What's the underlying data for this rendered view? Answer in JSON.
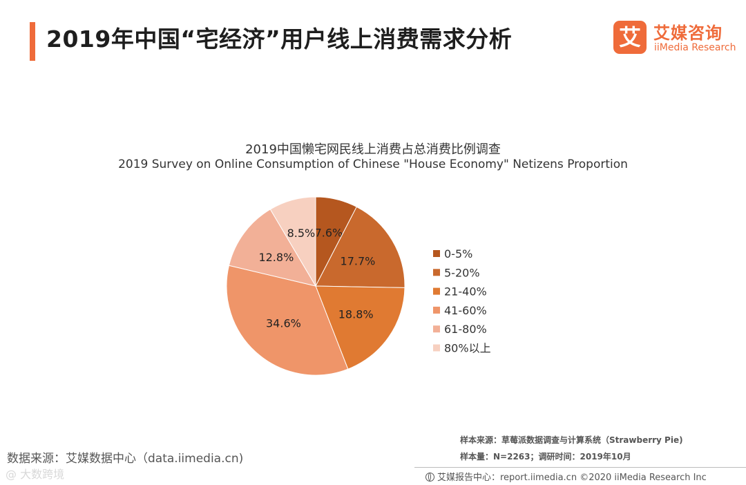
{
  "header": {
    "title": "2019年中国“宅经济”用户线上消费需求分析",
    "accent_color": "#ef6b3a"
  },
  "logo": {
    "mark": "艾",
    "name_cn": "艾媒咨询",
    "name_en": "iiMedia Research"
  },
  "chart_data": {
    "type": "pie",
    "title": "2019中国懒宅网民线上消费占总消费比例调查",
    "subtitle": "2019 Survey on Online Consumption of Chinese \"House Economy\" Netizens Proportion",
    "categories": [
      "0-5%",
      "5-20%",
      "21-40%",
      "41-60%",
      "61-80%",
      "80%以上"
    ],
    "values": [
      7.6,
      17.7,
      18.8,
      34.6,
      12.8,
      8.5
    ],
    "value_labels": [
      "7.6%",
      "17.7%",
      "18.8%",
      "34.6%",
      "12.8%",
      "8.5%"
    ],
    "colors": [
      "#b5571f",
      "#c9692d",
      "#e07a32",
      "#ef9569",
      "#f2b097",
      "#f7d0c0"
    ],
    "legend_position": "right"
  },
  "footer": {
    "source": "数据来源：艾媒数据中心（data.iimedia.cn)",
    "sample_source": "样本来源：草莓派数据调查与计算系统（Strawberry Pie)",
    "sample_info": "样本量：N=2263；调研时间：2019年10月",
    "copyright": "艾媒报告中心：report.iimedia.cn ©2020 iiMedia Research Inc",
    "watermark": "@ 大数跨境"
  }
}
